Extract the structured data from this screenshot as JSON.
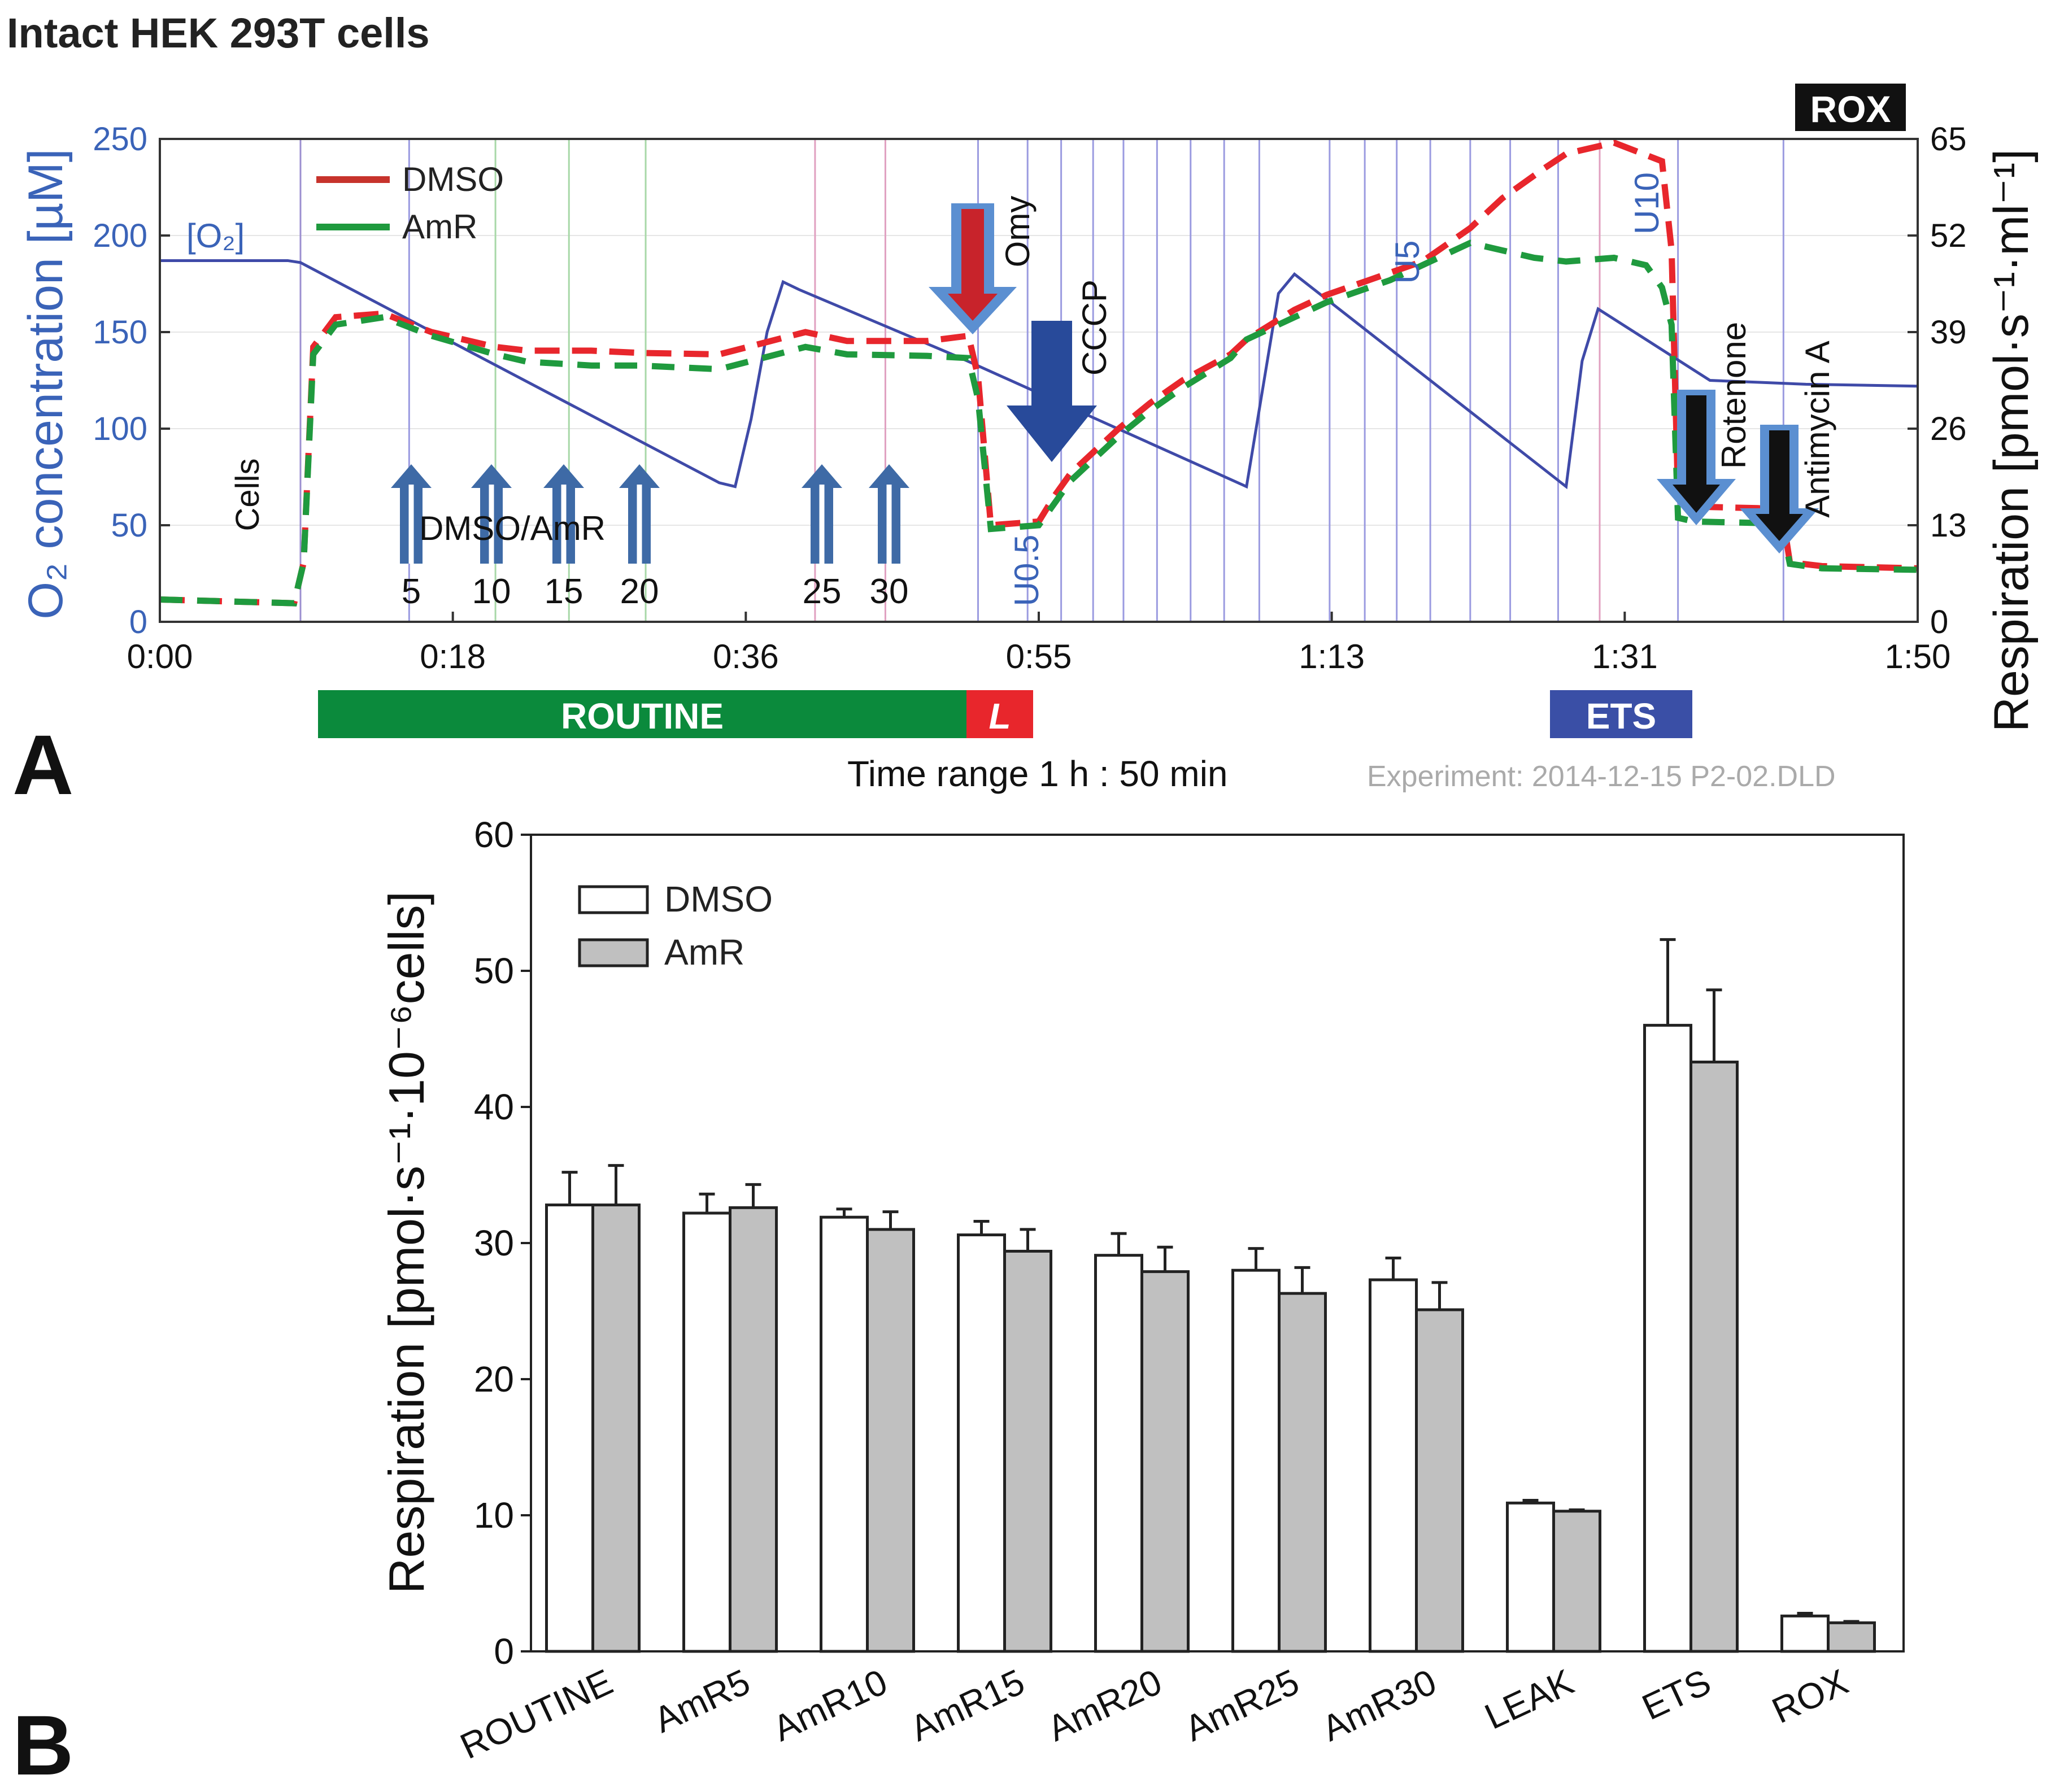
{
  "figure_title": "Intact HEK 293T cells",
  "panel_a": {
    "label": "A",
    "legend": [
      "DMSO",
      "AmR"
    ],
    "o2_label": "[O₂]",
    "left_axis_label": "O₂ concentration [µM]",
    "right_axis_label": "Respiration [pmol·s⁻¹·ml⁻¹]",
    "time_range_label": "Time range 1 h : 50 min",
    "experiment_label": "Experiment:  2014-12-15  P2-02.DLD",
    "rox_badge": "ROX",
    "x_ticks": [
      "0:00",
      "0:18",
      "0:36",
      "0:55",
      "1:13",
      "1:31",
      "1:50"
    ],
    "left_ticks": [
      "0",
      "50",
      "100",
      "150",
      "200",
      "250"
    ],
    "right_ticks": [
      "0",
      "13",
      "26",
      "39",
      "52",
      "65"
    ],
    "events": {
      "cells": "Cells",
      "dmso_amr": "DMSO/AmR",
      "doses": [
        "5",
        "10",
        "15",
        "20",
        "25",
        "30"
      ],
      "omy": "Omy",
      "cccp": "CCCP",
      "u05": "U0.5",
      "u5": "U5",
      "u10": "U10",
      "rotenone": "Rotenone",
      "antimycin": "Antimycin A"
    },
    "state_bars": {
      "routine": "ROUTINE",
      "leak": "L",
      "ets": "ETS"
    },
    "colors": {
      "o2": "#3f4aa8",
      "dmso": "#e8262c",
      "amr": "#1f9a3e",
      "routine": "#0b8a3c",
      "leak": "#e8262c",
      "ets": "#3a4fa6"
    }
  },
  "chart_data": {
    "type": "bar",
    "panel_label": "B",
    "categories": [
      "ROUTINE",
      "AmR5",
      "AmR10",
      "AmR15",
      "AmR20",
      "AmR25",
      "AmR30",
      "LEAK",
      "ETS",
      "ROX"
    ],
    "series": [
      {
        "name": "DMSO",
        "color": "#ffffff",
        "values": [
          32.8,
          32.2,
          31.9,
          30.6,
          29.1,
          28.0,
          27.3,
          10.9,
          46.0,
          2.6
        ],
        "errors": [
          2.4,
          1.4,
          0.6,
          1.0,
          1.6,
          1.6,
          1.6,
          0.2,
          6.3,
          0.2
        ]
      },
      {
        "name": "AmR",
        "color": "#c0c0c0",
        "values": [
          32.8,
          32.6,
          31.0,
          29.4,
          27.9,
          26.3,
          25.1,
          10.3,
          43.3,
          2.1
        ],
        "errors": [
          2.9,
          1.7,
          1.3,
          1.6,
          1.8,
          1.9,
          2.0,
          0.1,
          5.3,
          0.1
        ]
      }
    ],
    "ylabel": "Respiration [pmol·s⁻¹·10⁻⁶cells]",
    "xlabel": "",
    "ylim": [
      0,
      60
    ],
    "yticks": [
      "0",
      "10",
      "20",
      "30",
      "40",
      "50",
      "60"
    ],
    "legend_position": "top-left"
  }
}
